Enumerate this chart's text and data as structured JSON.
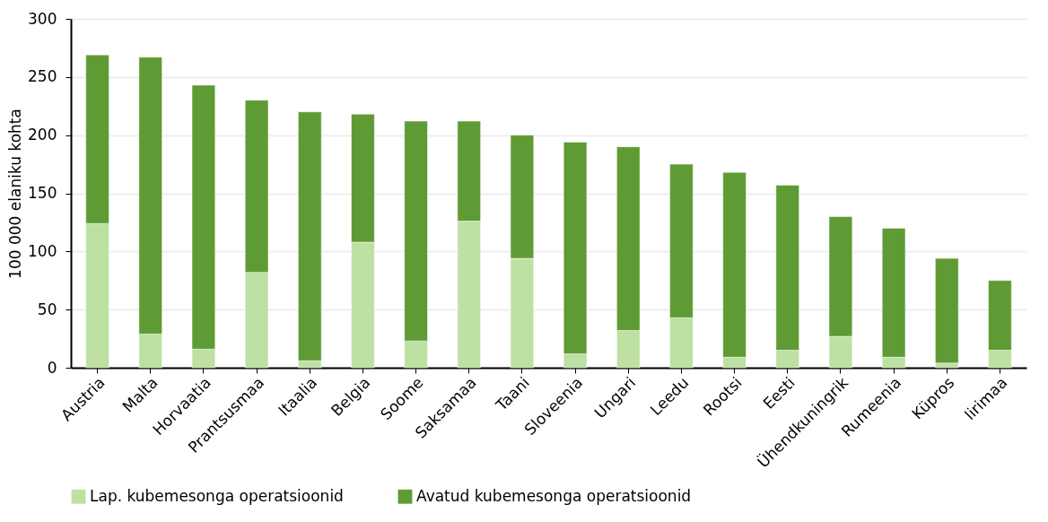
{
  "chart_data": {
    "type": "bar",
    "stacked": true,
    "ylabel": "100 000 elaniku kohta",
    "categories": [
      "Austria",
      "Malta",
      "Horvaatia",
      "Prantsusmaa",
      "Itaalia",
      "Belgia",
      "Soome",
      "Saksamaa",
      "Taani",
      "Sloveenia",
      "Ungari",
      "Leedu",
      "Rootsi",
      "Eesti",
      "Ühendkuningrik",
      "Rumeenia",
      "Küpros",
      "Iirimaa"
    ],
    "series": [
      {
        "name": "Lap. kubemesonga operatsioonid",
        "color": "#bde0a3",
        "values": [
          124,
          29,
          16,
          82,
          6,
          108,
          23,
          126,
          94,
          12,
          32,
          43,
          9,
          15,
          27,
          9,
          4,
          15
        ]
      },
      {
        "name": "Avatud kubemesonga operatsioonid",
        "color": "#5f9b34",
        "values": [
          145,
          238,
          227,
          148,
          214,
          110,
          189,
          86,
          106,
          182,
          158,
          132,
          159,
          142,
          103,
          111,
          90,
          60
        ]
      }
    ],
    "ylim": [
      0,
      300
    ],
    "yticks": [
      0,
      50,
      100,
      150,
      200,
      250,
      300
    ],
    "grid": "y",
    "legend": "bottom"
  }
}
